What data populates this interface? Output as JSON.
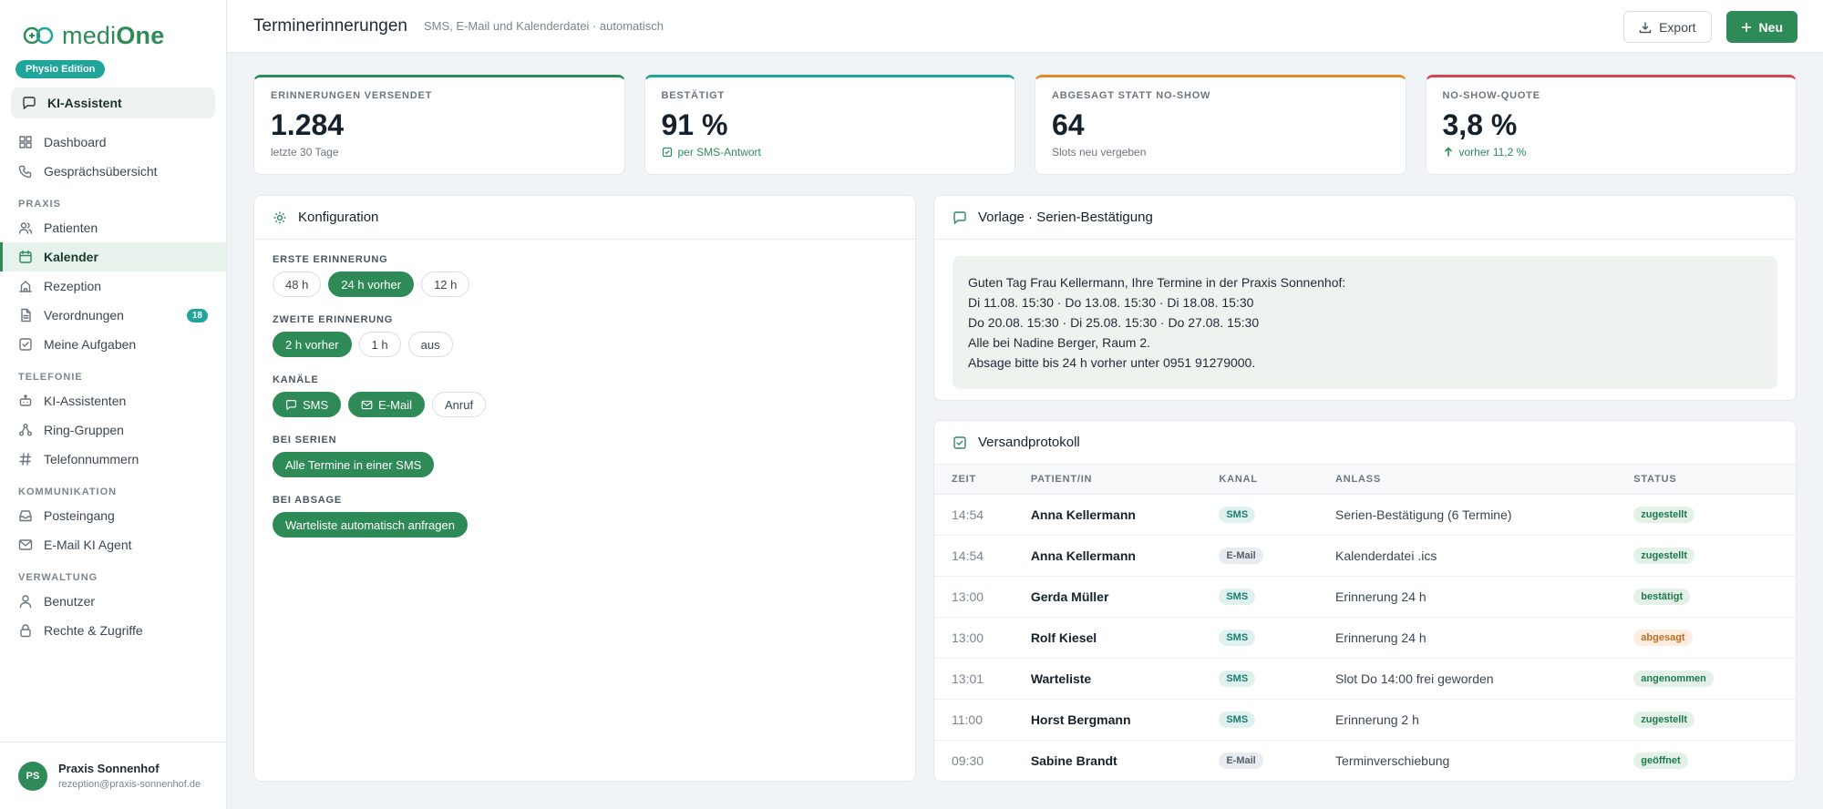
{
  "brand": {
    "name_light": "medi",
    "name_bold": "One",
    "edition": "Physio Edition",
    "color": "#2e8b57"
  },
  "ai_button": {
    "label": "KI-Assistent",
    "icon": "chat-icon"
  },
  "nav": {
    "top": [
      {
        "label": "Dashboard",
        "icon": "grid-icon"
      },
      {
        "label": "Gesprächsübersicht",
        "icon": "phone-icon"
      }
    ],
    "sections": [
      {
        "title": "PRAXIS",
        "items": [
          {
            "label": "Patienten",
            "icon": "users-icon"
          },
          {
            "label": "Kalender",
            "icon": "calendar-icon",
            "active": true
          },
          {
            "label": "Rezeption",
            "icon": "building-icon"
          },
          {
            "label": "Verordnungen",
            "icon": "document-icon",
            "badge": "18"
          },
          {
            "label": "Meine Aufgaben",
            "icon": "checkbox-icon"
          }
        ]
      },
      {
        "title": "TELEFONIE",
        "items": [
          {
            "label": "KI-Assistenten",
            "icon": "robot-icon"
          },
          {
            "label": "Ring-Gruppen",
            "icon": "share-icon"
          },
          {
            "label": "Telefonnummern",
            "icon": "hash-icon"
          }
        ]
      },
      {
        "title": "KOMMUNIKATION",
        "items": [
          {
            "label": "Posteingang",
            "icon": "inbox-icon"
          },
          {
            "label": "E-Mail KI Agent",
            "icon": "mail-icon"
          }
        ]
      },
      {
        "title": "VERWALTUNG",
        "items": [
          {
            "label": "Benutzer",
            "icon": "user-icon"
          },
          {
            "label": "Rechte & Zugriffe",
            "icon": "lock-icon"
          }
        ]
      }
    ]
  },
  "account": {
    "initials": "PS",
    "name": "Praxis Sonnenhof",
    "email": "rezeption@praxis-sonnenhof.de"
  },
  "header": {
    "title": "Terminerinnerungen",
    "subtitle": "SMS, E-Mail und Kalenderdatei · automatisch",
    "export_label": "Export",
    "new_label": "Neu"
  },
  "stats": [
    {
      "label": "ERINNERUNGEN VERSENDET",
      "value": "1.284",
      "note": "letzte 30 Tage",
      "color": "#2e8b57",
      "note_style": "plain"
    },
    {
      "label": "BESTÄTIGT",
      "value": "91 %",
      "note": "per SMS-Antwort",
      "color": "#1fa59a",
      "note_style": "check"
    },
    {
      "label": "ABGESAGT STATT NO-SHOW",
      "value": "64",
      "note": "Slots neu vergeben",
      "color": "#e08a2c",
      "note_style": "plain"
    },
    {
      "label": "NO-SHOW-QUOTE",
      "value": "3,8 %",
      "note": "vorher 11,2 %",
      "color": "#d9434f",
      "note_style": "arrow"
    }
  ],
  "config": {
    "title": "Konfiguration",
    "groups": [
      {
        "label": "ERSTE ERINNERUNG",
        "options": [
          {
            "label": "48 h"
          },
          {
            "label": "24 h vorher",
            "on": true
          },
          {
            "label": "12 h"
          }
        ]
      },
      {
        "label": "ZWEITE ERINNERUNG",
        "options": [
          {
            "label": "2 h vorher",
            "on": true
          },
          {
            "label": "1 h"
          },
          {
            "label": "aus"
          }
        ]
      },
      {
        "label": "KANÄLE",
        "options": [
          {
            "label": "SMS",
            "on": true,
            "icon": "chat-icon"
          },
          {
            "label": "E-Mail",
            "on": true,
            "icon": "mail-icon"
          },
          {
            "label": "Anruf"
          }
        ]
      },
      {
        "label": "BEI SERIEN",
        "options": [
          {
            "label": "Alle Termine in einer SMS",
            "on": true
          }
        ]
      },
      {
        "label": "BEI ABSAGE",
        "options": [
          {
            "label": "Warteliste automatisch anfragen",
            "on": true
          }
        ]
      }
    ]
  },
  "template": {
    "title": "Vorlage · Serien-Bestätigung",
    "lines": [
      "Guten Tag Frau Kellermann, Ihre Termine in der Praxis Sonnenhof:",
      "Di 11.08. 15:30 · Do 13.08. 15:30 · Di 18.08. 15:30",
      "Do 20.08. 15:30 · Di 25.08. 15:30 · Do 27.08. 15:30",
      "Alle bei Nadine Berger, Raum 2.",
      "Absage bitte bis 24 h vorher unter 0951 91279000."
    ]
  },
  "log": {
    "title": "Versandprotokoll",
    "columns": [
      "ZEIT",
      "PATIENT/IN",
      "KANAL",
      "ANLASS",
      "STATUS"
    ],
    "rows": [
      {
        "time": "14:54",
        "patient": "Anna Kellermann",
        "channel": "SMS",
        "reason": "Serien-Bestätigung (6 Termine)",
        "status": "zugestellt"
      },
      {
        "time": "14:54",
        "patient": "Anna Kellermann",
        "channel": "E-Mail",
        "reason": "Kalenderdatei .ics",
        "status": "zugestellt"
      },
      {
        "time": "13:00",
        "patient": "Gerda Müller",
        "channel": "SMS",
        "reason": "Erinnerung 24 h",
        "status": "bestätigt"
      },
      {
        "time": "13:00",
        "patient": "Rolf Kiesel",
        "channel": "SMS",
        "reason": "Erinnerung 24 h",
        "status": "abgesagt"
      },
      {
        "time": "13:01",
        "patient": "Warteliste",
        "channel": "SMS",
        "reason": "Slot Do 14:00 frei geworden",
        "status": "angenommen"
      },
      {
        "time": "11:00",
        "patient": "Horst Bergmann",
        "channel": "SMS",
        "reason": "Erinnerung 2 h",
        "status": "zugestellt"
      },
      {
        "time": "09:30",
        "patient": "Sabine Brandt",
        "channel": "E-Mail",
        "reason": "Terminverschiebung",
        "status": "geöffnet"
      }
    ]
  }
}
